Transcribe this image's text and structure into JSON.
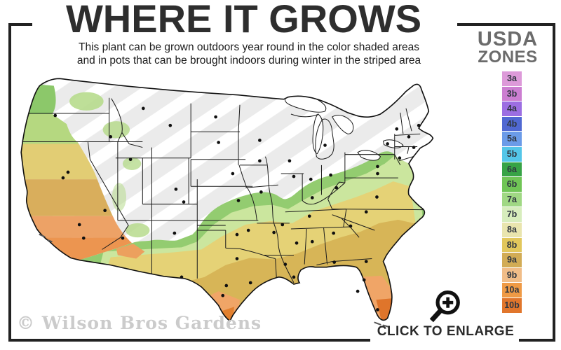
{
  "header": {
    "title": "WHERE IT GROWS",
    "subtitle_line1": "This plant can be grown outdoors year round in the color shaded areas",
    "subtitle_line2": "and in pots that can be brought indoors during winter in the striped area"
  },
  "legend": {
    "title_line1": "USDA",
    "title_line2": "ZONES",
    "zones": [
      {
        "label": "3a",
        "color": "#dd9ad9"
      },
      {
        "label": "3b",
        "color": "#cc7ed1"
      },
      {
        "label": "4a",
        "color": "#9c6ee2"
      },
      {
        "label": "4b",
        "color": "#5068d2"
      },
      {
        "label": "5a",
        "color": "#6b9be8"
      },
      {
        "label": "5b",
        "color": "#54c6e8"
      },
      {
        "label": "6a",
        "color": "#37a346"
      },
      {
        "label": "6b",
        "color": "#70c556"
      },
      {
        "label": "7a",
        "color": "#a0d884"
      },
      {
        "label": "7b",
        "color": "#d7edbd"
      },
      {
        "label": "8a",
        "color": "#e9e5ae"
      },
      {
        "label": "8b",
        "color": "#e2c75c"
      },
      {
        "label": "9a",
        "color": "#d2ac55"
      },
      {
        "label": "9b",
        "color": "#f1bd88"
      },
      {
        "label": "10a",
        "color": "#ef9a45"
      },
      {
        "label": "10b",
        "color": "#e1762c"
      }
    ]
  },
  "map": {
    "watermark": "© Wilson Bros Gardens",
    "palette": {
      "striped_base": "#ebebeb",
      "stripe": "#ffffff",
      "green": "#93cc70",
      "pale_green": "#cbe69e",
      "yellow": "#e5d276",
      "gold": "#d7b557",
      "peach": "#f0a567",
      "orange": "#e1762c",
      "border": "#1c1c1c"
    }
  },
  "footer": {
    "enlarge_label": "CLICK TO ENLARGE"
  }
}
